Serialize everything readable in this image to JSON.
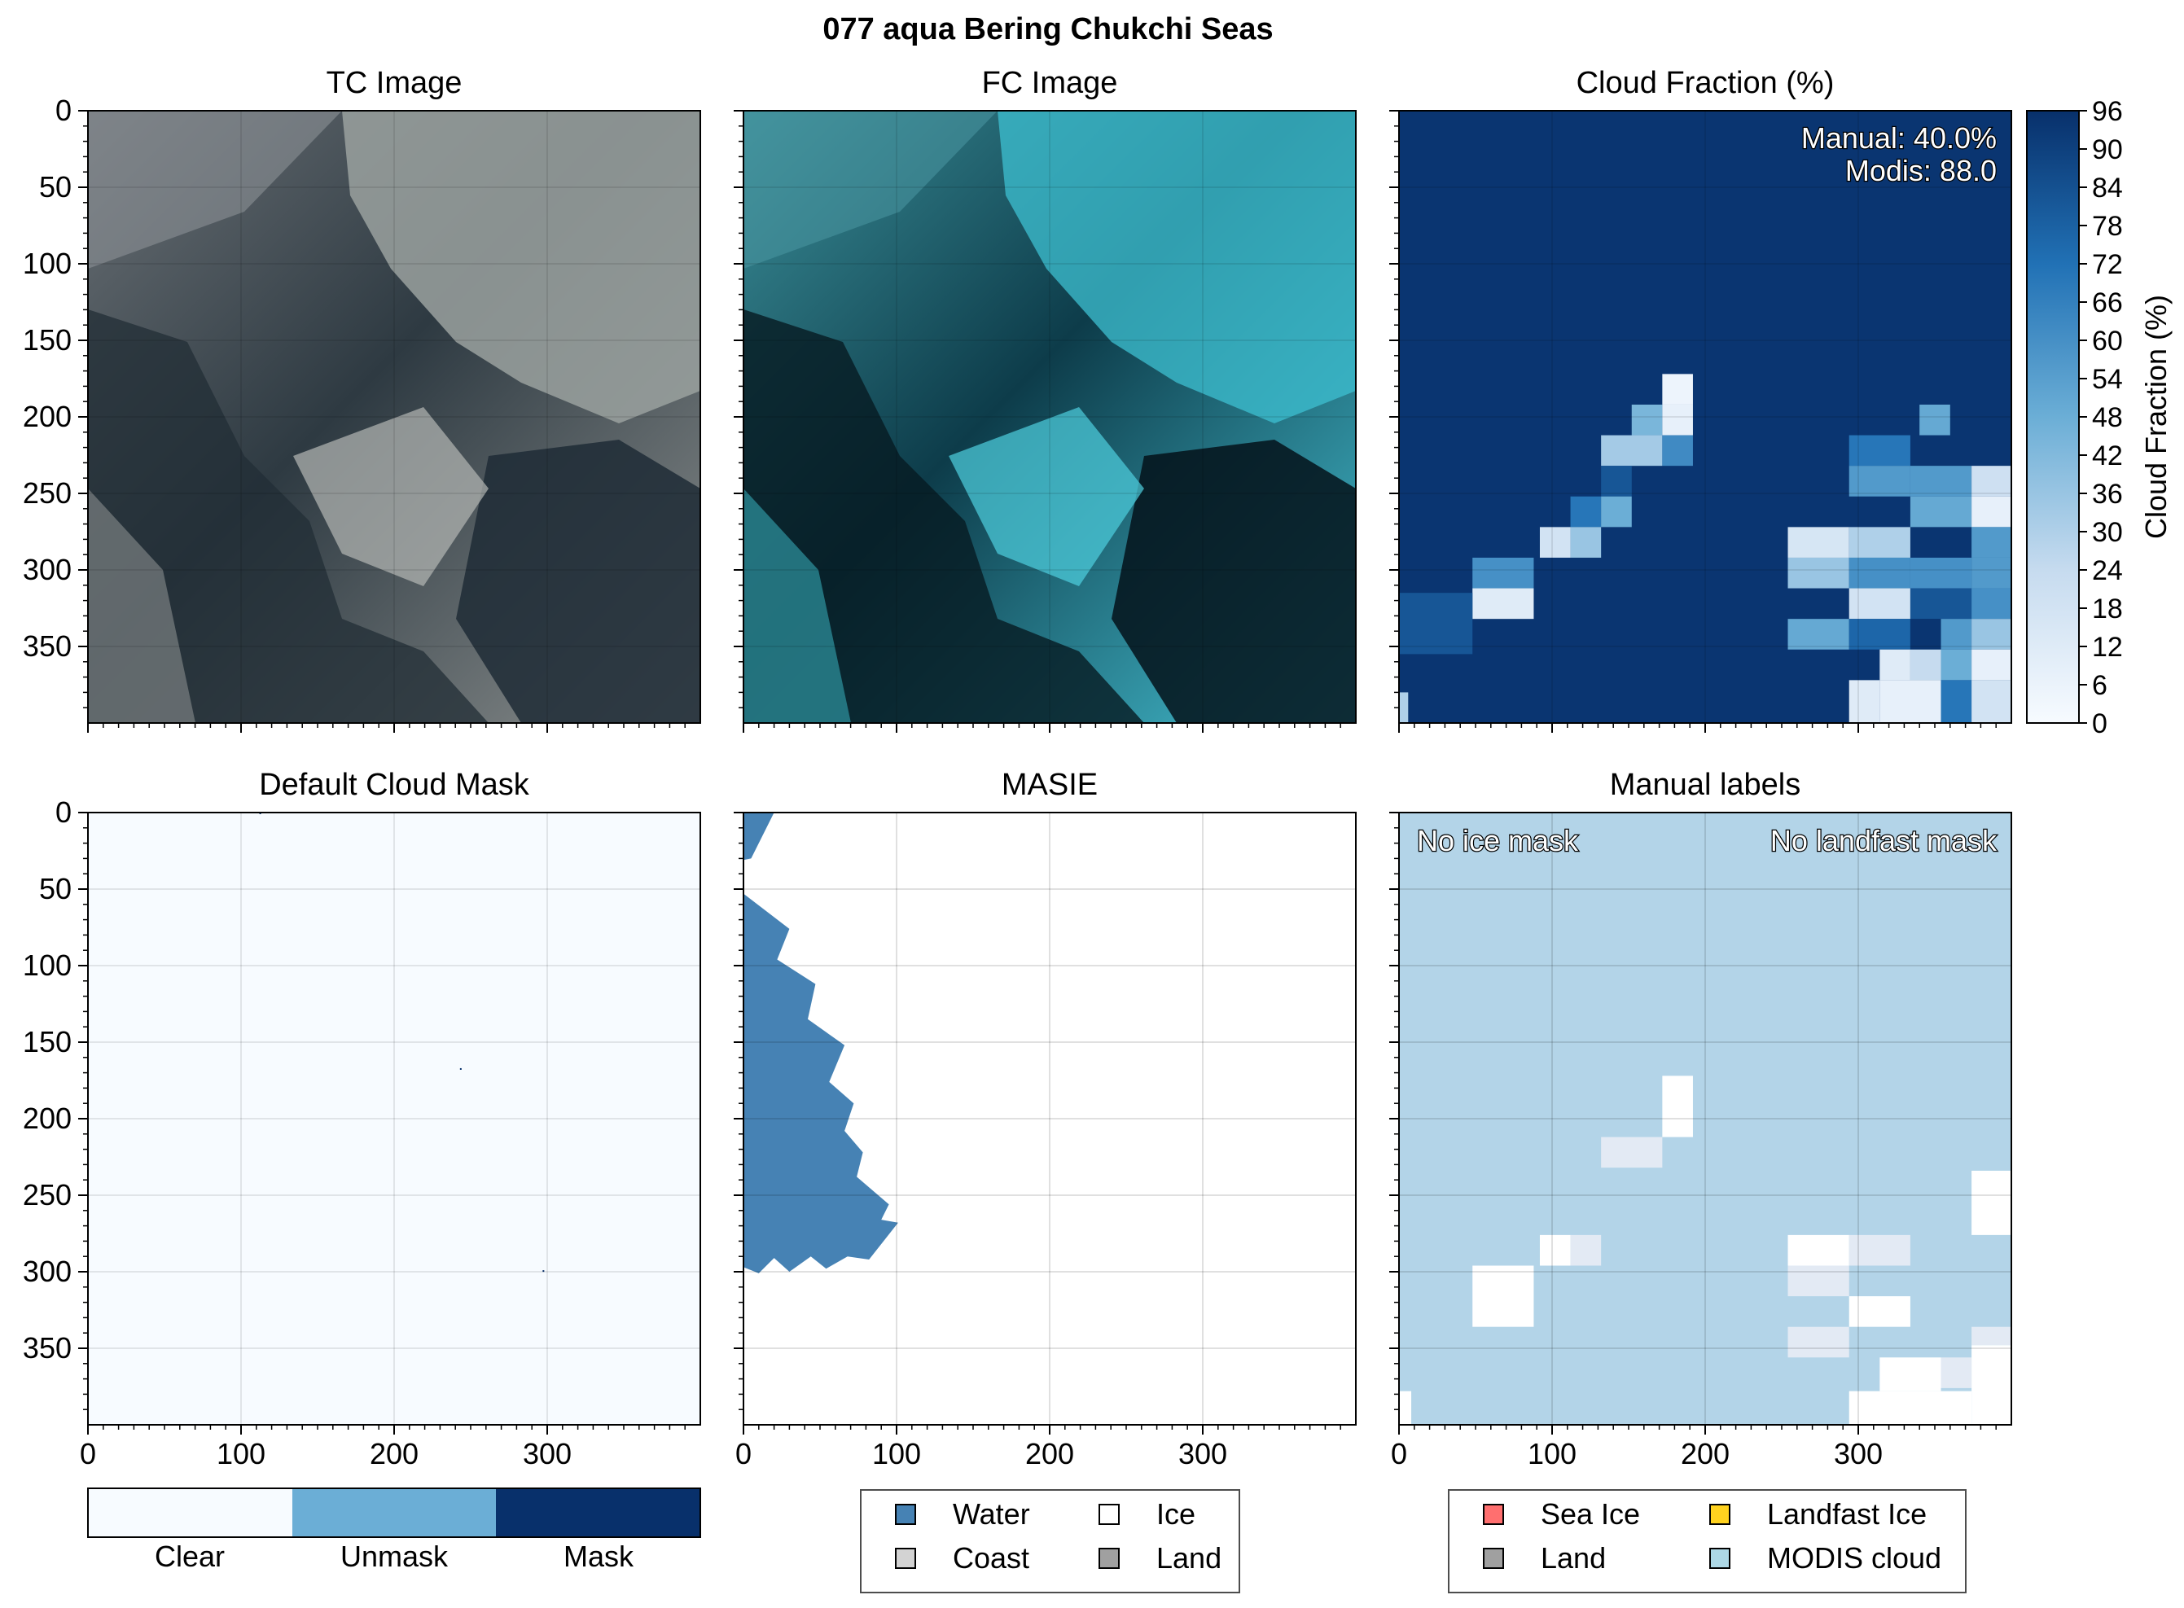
{
  "figure_title": "077 aqua Bering Chukchi Seas",
  "colors": {
    "tc_base": "#5f666b",
    "fc_base": "#1f8fa0",
    "cloud_low": "#f7fbff",
    "cloud_high": "#08306b",
    "mask_clear": "#f7fbff",
    "mask_unmask": "#6baed6",
    "mask_mask": "#08306b",
    "masie_water": "#4682b4",
    "manual_background": "#b3d4e8",
    "legend_sea_ice": "#ff6f6f",
    "legend_landfast": "#ffd21f",
    "legend_land": "#a0a0a0",
    "legend_coast": "#d3d3d3",
    "legend_modis_cloud": "#add8e6"
  },
  "chart_data": [
    {
      "type": "image",
      "panel": "tc",
      "title": "TC Image",
      "xlim": [
        0,
        400
      ],
      "ylim": [
        400,
        0
      ],
      "xticks": [
        0,
        100,
        200,
        300
      ],
      "yticks": [
        0,
        50,
        100,
        150,
        200,
        250,
        300,
        350
      ],
      "x_tick_labels_visible": false,
      "y_tick_labels_visible": true
    },
    {
      "type": "image",
      "panel": "fc",
      "title": "FC Image",
      "xlim": [
        0,
        400
      ],
      "ylim": [
        400,
        0
      ],
      "xticks": [
        0,
        100,
        200,
        300
      ],
      "yticks": [
        0,
        50,
        100,
        150,
        200,
        250,
        300,
        350
      ],
      "x_tick_labels_visible": false,
      "y_tick_labels_visible": false
    },
    {
      "type": "heatmap",
      "panel": "cloud_fraction",
      "title": "Cloud Fraction (%)",
      "xlim": [
        0,
        400
      ],
      "ylim": [
        400,
        0
      ],
      "xticks": [
        0,
        100,
        200,
        300
      ],
      "yticks": [
        0,
        50,
        100,
        150,
        200,
        250,
        300,
        350
      ],
      "annotation": [
        "Manual: 40.0%",
        "Modis: 88.0"
      ],
      "colorbar": {
        "label": "Cloud Fraction (%)",
        "min": 0,
        "max": 96,
        "step": 6,
        "ticks": [
          "0",
          "6",
          "12",
          "18",
          "24",
          "30",
          "36",
          "42",
          "48",
          "54",
          "60",
          "66",
          "72",
          "78",
          "84",
          "90",
          "96"
        ]
      },
      "background_value": 94,
      "cells": [
        {
          "x": 172,
          "y": 172,
          "w": 20,
          "h": 20,
          "v": 5
        },
        {
          "x": 152,
          "y": 192,
          "w": 20,
          "h": 20,
          "v": 44
        },
        {
          "x": 172,
          "y": 192,
          "w": 20,
          "h": 20,
          "v": 8
        },
        {
          "x": 132,
          "y": 212,
          "w": 40,
          "h": 20,
          "v": 33
        },
        {
          "x": 172,
          "y": 212,
          "w": 20,
          "h": 20,
          "v": 62
        },
        {
          "x": 132,
          "y": 232,
          "w": 20,
          "h": 20,
          "v": 82
        },
        {
          "x": 112,
          "y": 252,
          "w": 20,
          "h": 20,
          "v": 70
        },
        {
          "x": 132,
          "y": 252,
          "w": 20,
          "h": 20,
          "v": 48
        },
        {
          "x": 92,
          "y": 272,
          "w": 20,
          "h": 20,
          "v": 18
        },
        {
          "x": 112,
          "y": 272,
          "w": 20,
          "h": 20,
          "v": 36
        },
        {
          "x": 48,
          "y": 292,
          "w": 40,
          "h": 20,
          "v": 60
        },
        {
          "x": 48,
          "y": 312,
          "w": 40,
          "h": 20,
          "v": 12
        },
        {
          "x": 0,
          "y": 315,
          "w": 48,
          "h": 40,
          "v": 82
        },
        {
          "x": 340,
          "y": 192,
          "w": 20,
          "h": 20,
          "v": 50
        },
        {
          "x": 294,
          "y": 212,
          "w": 40,
          "h": 20,
          "v": 70
        },
        {
          "x": 294,
          "y": 232,
          "w": 40,
          "h": 20,
          "v": 56
        },
        {
          "x": 334,
          "y": 232,
          "w": 40,
          "h": 20,
          "v": 56
        },
        {
          "x": 374,
          "y": 232,
          "w": 26,
          "h": 20,
          "v": 20
        },
        {
          "x": 334,
          "y": 252,
          "w": 40,
          "h": 20,
          "v": 50
        },
        {
          "x": 374,
          "y": 252,
          "w": 26,
          "h": 20,
          "v": 8
        },
        {
          "x": 254,
          "y": 272,
          "w": 40,
          "h": 20,
          "v": 16
        },
        {
          "x": 294,
          "y": 272,
          "w": 40,
          "h": 20,
          "v": 30
        },
        {
          "x": 374,
          "y": 272,
          "w": 26,
          "h": 20,
          "v": 56
        },
        {
          "x": 254,
          "y": 292,
          "w": 40,
          "h": 20,
          "v": 36
        },
        {
          "x": 294,
          "y": 292,
          "w": 40,
          "h": 20,
          "v": 60
        },
        {
          "x": 334,
          "y": 292,
          "w": 40,
          "h": 20,
          "v": 60
        },
        {
          "x": 374,
          "y": 292,
          "w": 26,
          "h": 20,
          "v": 56
        },
        {
          "x": 294,
          "y": 312,
          "w": 40,
          "h": 20,
          "v": 18
        },
        {
          "x": 334,
          "y": 312,
          "w": 40,
          "h": 20,
          "v": 82
        },
        {
          "x": 374,
          "y": 312,
          "w": 26,
          "h": 20,
          "v": 60
        },
        {
          "x": 254,
          "y": 332,
          "w": 40,
          "h": 20,
          "v": 50
        },
        {
          "x": 294,
          "y": 332,
          "w": 40,
          "h": 20,
          "v": 76
        },
        {
          "x": 334,
          "y": 332,
          "w": 20,
          "h": 20,
          "v": 94
        },
        {
          "x": 354,
          "y": 332,
          "w": 20,
          "h": 20,
          "v": 56
        },
        {
          "x": 374,
          "y": 332,
          "w": 26,
          "h": 20,
          "v": 36
        },
        {
          "x": 314,
          "y": 352,
          "w": 20,
          "h": 20,
          "v": 12
        },
        {
          "x": 334,
          "y": 352,
          "w": 20,
          "h": 20,
          "v": 24
        },
        {
          "x": 354,
          "y": 352,
          "w": 20,
          "h": 20,
          "v": 48
        },
        {
          "x": 374,
          "y": 352,
          "w": 26,
          "h": 20,
          "v": 8
        },
        {
          "x": 294,
          "y": 372,
          "w": 20,
          "h": 28,
          "v": 12
        },
        {
          "x": 314,
          "y": 372,
          "w": 40,
          "h": 28,
          "v": 8
        },
        {
          "x": 354,
          "y": 372,
          "w": 20,
          "h": 28,
          "v": 70
        },
        {
          "x": 374,
          "y": 372,
          "w": 26,
          "h": 28,
          "v": 18
        },
        {
          "x": 0,
          "y": 380,
          "w": 6,
          "h": 20,
          "v": 30
        }
      ]
    },
    {
      "type": "heatmap",
      "panel": "default_cloud_mask",
      "title": "Default Cloud Mask",
      "xlim": [
        0,
        400
      ],
      "ylim": [
        400,
        0
      ],
      "xticks": [
        0,
        100,
        200,
        300
      ],
      "yticks": [
        0,
        50,
        100,
        150,
        200,
        250,
        300,
        350
      ],
      "categories": [
        "Clear",
        "Unmask",
        "Mask"
      ],
      "background_category": "Clear",
      "specks": [
        {
          "x": 112,
          "y": 0,
          "category": "Mask"
        },
        {
          "x": 243,
          "y": 167,
          "category": "Mask"
        },
        {
          "x": 297,
          "y": 299,
          "category": "Mask"
        }
      ]
    },
    {
      "type": "area",
      "panel": "masie",
      "title": "MASIE",
      "xlim": [
        0,
        400
      ],
      "ylim": [
        400,
        0
      ],
      "xticks": [
        0,
        100,
        200,
        300
      ],
      "yticks": [
        0,
        50,
        100,
        150,
        200,
        250,
        300,
        350
      ],
      "legend": [
        "Water",
        "Ice",
        "Coast",
        "Land"
      ],
      "background_category": "Ice",
      "water_regions": [
        [
          [
            0,
            0
          ],
          [
            20,
            0
          ],
          [
            5,
            30
          ],
          [
            0,
            31
          ]
        ],
        [
          [
            0,
            53
          ],
          [
            30,
            76
          ],
          [
            22,
            96
          ],
          [
            47,
            112
          ],
          [
            42,
            135
          ],
          [
            66,
            152
          ],
          [
            56,
            176
          ],
          [
            72,
            190
          ],
          [
            66,
            208
          ],
          [
            78,
            222
          ],
          [
            74,
            238
          ],
          [
            95,
            256
          ],
          [
            90,
            266
          ],
          [
            101,
            268
          ],
          [
            82,
            292
          ],
          [
            68,
            290
          ],
          [
            54,
            298
          ],
          [
            44,
            290
          ],
          [
            30,
            300
          ],
          [
            20,
            291
          ],
          [
            10,
            301
          ],
          [
            0,
            297
          ]
        ]
      ]
    },
    {
      "type": "heatmap",
      "panel": "manual_labels",
      "title": "Manual labels",
      "xlim": [
        0,
        400
      ],
      "ylim": [
        400,
        0
      ],
      "xticks": [
        0,
        100,
        200,
        300
      ],
      "yticks": [
        0,
        50,
        100,
        150,
        200,
        250,
        300,
        350
      ],
      "notes": [
        "No ice mask",
        "No landfast mask"
      ],
      "legend": [
        "Sea Ice",
        "Landfast Ice",
        "Land",
        "MODIS cloud"
      ],
      "background_category": "MODIS cloud",
      "cells": [
        {
          "x": 172,
          "y": 172,
          "w": 20,
          "h": 40,
          "v": "white"
        },
        {
          "x": 132,
          "y": 212,
          "w": 40,
          "h": 20,
          "v": "pale"
        },
        {
          "x": 374,
          "y": 234,
          "w": 26,
          "h": 42,
          "v": "white"
        },
        {
          "x": 92,
          "y": 276,
          "w": 20,
          "h": 20,
          "v": "white"
        },
        {
          "x": 112,
          "y": 276,
          "w": 20,
          "h": 20,
          "v": "pale"
        },
        {
          "x": 48,
          "y": 296,
          "w": 40,
          "h": 40,
          "v": "white"
        },
        {
          "x": 254,
          "y": 276,
          "w": 40,
          "h": 20,
          "v": "white"
        },
        {
          "x": 294,
          "y": 276,
          "w": 40,
          "h": 20,
          "v": "pale"
        },
        {
          "x": 254,
          "y": 296,
          "w": 40,
          "h": 20,
          "v": "pale"
        },
        {
          "x": 294,
          "y": 316,
          "w": 40,
          "h": 20,
          "v": "white"
        },
        {
          "x": 374,
          "y": 336,
          "w": 26,
          "h": 12,
          "v": "pale"
        },
        {
          "x": 254,
          "y": 336,
          "w": 40,
          "h": 20,
          "v": "pale"
        },
        {
          "x": 314,
          "y": 356,
          "w": 40,
          "h": 22,
          "v": "white"
        },
        {
          "x": 354,
          "y": 356,
          "w": 20,
          "h": 20,
          "v": "pale"
        },
        {
          "x": 374,
          "y": 348,
          "w": 26,
          "h": 52,
          "v": "white"
        },
        {
          "x": 294,
          "y": 378,
          "w": 80,
          "h": 22,
          "v": "white"
        },
        {
          "x": 0,
          "y": 378,
          "w": 8,
          "h": 22,
          "v": "white"
        }
      ]
    }
  ]
}
